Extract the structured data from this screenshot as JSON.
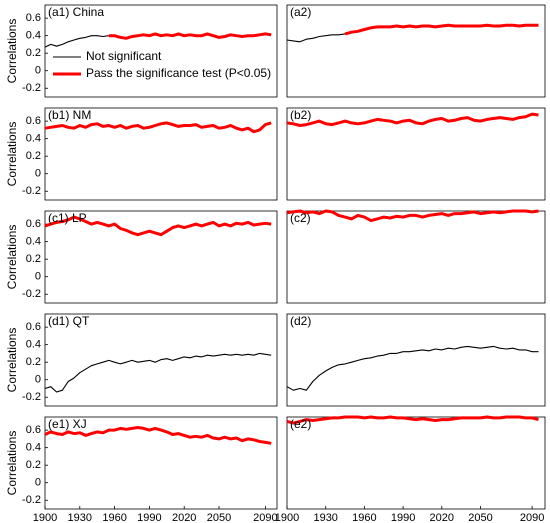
{
  "chart_data": [
    {
      "type": "line",
      "title": "(a1) China",
      "ylabel": "Correlations",
      "legend": "lower left",
      "x": [
        1900,
        1905,
        1910,
        1915,
        1920,
        1925,
        1930,
        1935,
        1940,
        1945,
        1950,
        1955,
        1960,
        1965,
        1970,
        1975,
        1980,
        1985,
        1990,
        1995,
        2000,
        2005,
        2010,
        2015,
        2020,
        2025,
        2030,
        2035,
        2040,
        2045,
        2050,
        2055,
        2060,
        2065,
        2070,
        2075,
        2080,
        2085,
        2090,
        2095
      ],
      "series": [
        {
          "name": "Not significant",
          "color": "#000000",
          "values": [
            0.27,
            0.3,
            0.28,
            0.3,
            0.33,
            0.35,
            0.37,
            0.38,
            0.4,
            0.4,
            0.39,
            0.4,
            null,
            null,
            null,
            null,
            null,
            null,
            null,
            null,
            null,
            null,
            null,
            null,
            null,
            null,
            null,
            null,
            null,
            null,
            null,
            null,
            null,
            null,
            null,
            null,
            null,
            null,
            null,
            null
          ]
        },
        {
          "name": "Pass the significance test (P<0.05)",
          "color": "#ff0000",
          "values": [
            null,
            null,
            null,
            null,
            null,
            null,
            null,
            null,
            null,
            null,
            null,
            0.4,
            0.4,
            0.38,
            0.37,
            0.39,
            0.4,
            0.41,
            0.4,
            0.42,
            0.4,
            0.41,
            0.4,
            0.42,
            0.4,
            0.41,
            0.4,
            0.4,
            0.42,
            0.4,
            0.38,
            0.39,
            0.41,
            0.4,
            0.39,
            0.4,
            0.4,
            0.41,
            0.42,
            0.41
          ]
        }
      ],
      "xlim": [
        1900,
        2100
      ],
      "ylim": [
        -0.3,
        0.75
      ],
      "yticks": [
        -0.2,
        0,
        0.2,
        0.4,
        0.6
      ]
    },
    {
      "type": "line",
      "title": "(a2)",
      "x": [
        1900,
        1905,
        1910,
        1915,
        1920,
        1925,
        1930,
        1935,
        1940,
        1945,
        1950,
        1955,
        1960,
        1965,
        1970,
        1975,
        1980,
        1985,
        1990,
        1995,
        2000,
        2005,
        2010,
        2015,
        2020,
        2025,
        2030,
        2035,
        2040,
        2045,
        2050,
        2055,
        2060,
        2065,
        2070,
        2075,
        2080,
        2085,
        2090,
        2095
      ],
      "series": [
        {
          "color": "#000000",
          "values": [
            0.35,
            0.34,
            0.33,
            0.36,
            0.37,
            0.39,
            0.4,
            0.41,
            0.41,
            0.42,
            null,
            null,
            null,
            null,
            null,
            null,
            null,
            null,
            null,
            null,
            null,
            null,
            null,
            null,
            null,
            null,
            null,
            null,
            null,
            null,
            null,
            null,
            null,
            null,
            null,
            null,
            null,
            null,
            null,
            null
          ]
        },
        {
          "color": "#ff0000",
          "values": [
            null,
            null,
            null,
            null,
            null,
            null,
            null,
            null,
            null,
            0.42,
            0.44,
            0.45,
            0.47,
            0.49,
            0.5,
            0.5,
            0.5,
            0.51,
            0.5,
            0.51,
            0.5,
            0.51,
            0.51,
            0.5,
            0.51,
            0.52,
            0.51,
            0.51,
            0.51,
            0.51,
            0.51,
            0.52,
            0.51,
            0.51,
            0.52,
            0.52,
            0.51,
            0.52,
            0.52,
            0.52
          ]
        }
      ],
      "xlim": [
        1900,
        2100
      ],
      "ylim": [
        -0.3,
        0.75
      ]
    },
    {
      "type": "line",
      "title": "(b1) NM",
      "ylabel": "Correlations",
      "x": [
        1900,
        1905,
        1910,
        1915,
        1920,
        1925,
        1930,
        1935,
        1940,
        1945,
        1950,
        1955,
        1960,
        1965,
        1970,
        1975,
        1980,
        1985,
        1990,
        1995,
        2000,
        2005,
        2010,
        2015,
        2020,
        2025,
        2030,
        2035,
        2040,
        2045,
        2050,
        2055,
        2060,
        2065,
        2070,
        2075,
        2080,
        2085,
        2090,
        2095
      ],
      "series": [
        {
          "color": "#ff0000",
          "values": [
            0.52,
            0.53,
            0.54,
            0.55,
            0.53,
            0.52,
            0.55,
            0.53,
            0.56,
            0.57,
            0.54,
            0.55,
            0.53,
            0.55,
            0.52,
            0.54,
            0.55,
            0.52,
            0.53,
            0.55,
            0.57,
            0.58,
            0.56,
            0.54,
            0.55,
            0.55,
            0.56,
            0.53,
            0.54,
            0.55,
            0.52,
            0.53,
            0.55,
            0.52,
            0.5,
            0.52,
            0.48,
            0.5,
            0.56,
            0.58
          ]
        }
      ],
      "xlim": [
        1900,
        2100
      ],
      "ylim": [
        -0.3,
        0.75
      ],
      "yticks": [
        -0.2,
        0,
        0.2,
        0.4,
        0.6
      ]
    },
    {
      "type": "line",
      "title": "(b2)",
      "x": [
        1900,
        1905,
        1910,
        1915,
        1920,
        1925,
        1930,
        1935,
        1940,
        1945,
        1950,
        1955,
        1960,
        1965,
        1970,
        1975,
        1980,
        1985,
        1990,
        1995,
        2000,
        2005,
        2010,
        2015,
        2020,
        2025,
        2030,
        2035,
        2040,
        2045,
        2050,
        2055,
        2060,
        2065,
        2070,
        2075,
        2080,
        2085,
        2090,
        2095
      ],
      "series": [
        {
          "color": "#ff0000",
          "values": [
            0.58,
            0.57,
            0.55,
            0.56,
            0.58,
            0.6,
            0.57,
            0.56,
            0.58,
            0.6,
            0.58,
            0.57,
            0.58,
            0.6,
            0.62,
            0.61,
            0.6,
            0.58,
            0.6,
            0.61,
            0.58,
            0.57,
            0.6,
            0.62,
            0.63,
            0.6,
            0.61,
            0.63,
            0.64,
            0.61,
            0.6,
            0.62,
            0.63,
            0.64,
            0.63,
            0.62,
            0.64,
            0.65,
            0.68,
            0.67
          ]
        }
      ],
      "xlim": [
        1900,
        2100
      ],
      "ylim": [
        -0.3,
        0.75
      ]
    },
    {
      "type": "line",
      "title": "(c1) LP",
      "ylabel": "Correlations",
      "x": [
        1900,
        1905,
        1910,
        1915,
        1920,
        1925,
        1930,
        1935,
        1940,
        1945,
        1950,
        1955,
        1960,
        1965,
        1970,
        1975,
        1980,
        1985,
        1990,
        1995,
        2000,
        2005,
        2010,
        2015,
        2020,
        2025,
        2030,
        2035,
        2040,
        2045,
        2050,
        2055,
        2060,
        2065,
        2070,
        2075,
        2080,
        2085,
        2090,
        2095
      ],
      "series": [
        {
          "color": "#ff0000",
          "values": [
            0.58,
            0.6,
            0.62,
            0.63,
            0.65,
            0.68,
            0.66,
            0.63,
            0.6,
            0.62,
            0.6,
            0.58,
            0.6,
            0.55,
            0.53,
            0.5,
            0.48,
            0.5,
            0.52,
            0.5,
            0.48,
            0.52,
            0.56,
            0.58,
            0.56,
            0.58,
            0.6,
            0.58,
            0.6,
            0.62,
            0.58,
            0.6,
            0.58,
            0.61,
            0.6,
            0.62,
            0.59,
            0.6,
            0.61,
            0.6
          ]
        }
      ],
      "xlim": [
        1900,
        2100
      ],
      "ylim": [
        -0.3,
        0.75
      ],
      "yticks": [
        -0.2,
        0,
        0.2,
        0.4,
        0.6
      ]
    },
    {
      "type": "line",
      "title": "(c2)",
      "x": [
        1900,
        1905,
        1910,
        1915,
        1920,
        1925,
        1930,
        1935,
        1940,
        1945,
        1950,
        1955,
        1960,
        1965,
        1970,
        1975,
        1980,
        1985,
        1990,
        1995,
        2000,
        2005,
        2010,
        2015,
        2020,
        2025,
        2030,
        2035,
        2040,
        2045,
        2050,
        2055,
        2060,
        2065,
        2070,
        2075,
        2080,
        2085,
        2090,
        2095
      ],
      "series": [
        {
          "color": "#ff0000",
          "values": [
            0.73,
            0.74,
            0.75,
            0.73,
            0.74,
            0.72,
            0.75,
            0.74,
            0.7,
            0.68,
            0.66,
            0.7,
            0.68,
            0.64,
            0.66,
            0.68,
            0.67,
            0.69,
            0.68,
            0.7,
            0.7,
            0.68,
            0.7,
            0.71,
            0.72,
            0.7,
            0.72,
            0.72,
            0.73,
            0.74,
            0.72,
            0.73,
            0.74,
            0.73,
            0.74,
            0.75,
            0.75,
            0.75,
            0.74,
            0.75
          ]
        }
      ],
      "xlim": [
        1900,
        2100
      ],
      "ylim": [
        -0.3,
        0.75
      ]
    },
    {
      "type": "line",
      "title": "(d1) QT",
      "ylabel": "Correlations",
      "x": [
        1900,
        1905,
        1910,
        1915,
        1920,
        1925,
        1930,
        1935,
        1940,
        1945,
        1950,
        1955,
        1960,
        1965,
        1970,
        1975,
        1980,
        1985,
        1990,
        1995,
        2000,
        2005,
        2010,
        2015,
        2020,
        2025,
        2030,
        2035,
        2040,
        2045,
        2050,
        2055,
        2060,
        2065,
        2070,
        2075,
        2080,
        2085,
        2090,
        2095
      ],
      "series": [
        {
          "color": "#000000",
          "values": [
            -0.1,
            -0.08,
            -0.14,
            -0.12,
            -0.02,
            0.02,
            0.08,
            0.12,
            0.16,
            0.18,
            0.2,
            0.22,
            0.2,
            0.18,
            0.2,
            0.22,
            0.2,
            0.21,
            0.22,
            0.2,
            0.23,
            0.24,
            0.22,
            0.24,
            0.26,
            0.25,
            0.27,
            0.26,
            0.28,
            0.27,
            0.28,
            0.29,
            0.28,
            0.29,
            0.28,
            0.29,
            0.28,
            0.3,
            0.29,
            0.28
          ]
        }
      ],
      "xlim": [
        1900,
        2100
      ],
      "ylim": [
        -0.3,
        0.75
      ],
      "yticks": [
        -0.2,
        0,
        0.2,
        0.4,
        0.6
      ]
    },
    {
      "type": "line",
      "title": "(d2)",
      "x": [
        1900,
        1905,
        1910,
        1915,
        1920,
        1925,
        1930,
        1935,
        1940,
        1945,
        1950,
        1955,
        1960,
        1965,
        1970,
        1975,
        1980,
        1985,
        1990,
        1995,
        2000,
        2005,
        2010,
        2015,
        2020,
        2025,
        2030,
        2035,
        2040,
        2045,
        2050,
        2055,
        2060,
        2065,
        2070,
        2075,
        2080,
        2085,
        2090,
        2095
      ],
      "series": [
        {
          "color": "#000000",
          "values": [
            -0.08,
            -0.12,
            -0.1,
            -0.12,
            -0.02,
            0.05,
            0.1,
            0.14,
            0.17,
            0.18,
            0.2,
            0.22,
            0.24,
            0.25,
            0.27,
            0.28,
            0.3,
            0.3,
            0.32,
            0.32,
            0.33,
            0.34,
            0.33,
            0.35,
            0.34,
            0.36,
            0.35,
            0.37,
            0.38,
            0.37,
            0.36,
            0.37,
            0.38,
            0.36,
            0.35,
            0.36,
            0.34,
            0.34,
            0.32,
            0.32
          ]
        }
      ],
      "xlim": [
        1900,
        2100
      ],
      "ylim": [
        -0.3,
        0.75
      ]
    },
    {
      "type": "line",
      "title": "(e1) XJ",
      "ylabel": "Correlations",
      "x": [
        1900,
        1905,
        1910,
        1915,
        1920,
        1925,
        1930,
        1935,
        1940,
        1945,
        1950,
        1955,
        1960,
        1965,
        1970,
        1975,
        1980,
        1985,
        1990,
        1995,
        2000,
        2005,
        2010,
        2015,
        2020,
        2025,
        2030,
        2035,
        2040,
        2045,
        2050,
        2055,
        2060,
        2065,
        2070,
        2075,
        2080,
        2085,
        2090,
        2095
      ],
      "series": [
        {
          "color": "#ff0000",
          "values": [
            0.55,
            0.58,
            0.56,
            0.55,
            0.58,
            0.56,
            0.57,
            0.54,
            0.56,
            0.58,
            0.57,
            0.6,
            0.6,
            0.62,
            0.61,
            0.62,
            0.63,
            0.62,
            0.6,
            0.62,
            0.6,
            0.58,
            0.55,
            0.56,
            0.54,
            0.52,
            0.53,
            0.52,
            0.54,
            0.51,
            0.5,
            0.52,
            0.5,
            0.51,
            0.48,
            0.5,
            0.49,
            0.47,
            0.46,
            0.45
          ]
        }
      ],
      "xlim": [
        1900,
        2100
      ],
      "ylim": [
        -0.3,
        0.75
      ],
      "yticks": [
        -0.2,
        0,
        0.2,
        0.4,
        0.6
      ],
      "xticks": [
        1900,
        1930,
        1960,
        1990,
        2020,
        2050,
        2090
      ]
    },
    {
      "type": "line",
      "title": "(e2)",
      "x": [
        1900,
        1905,
        1910,
        1915,
        1920,
        1925,
        1930,
        1935,
        1940,
        1945,
        1950,
        1955,
        1960,
        1965,
        1970,
        1975,
        1980,
        1985,
        1990,
        1995,
        2000,
        2005,
        2010,
        2015,
        2020,
        2025,
        2030,
        2035,
        2040,
        2045,
        2050,
        2055,
        2060,
        2065,
        2070,
        2075,
        2080,
        2085,
        2090,
        2095
      ],
      "series": [
        {
          "color": "#ff0000",
          "values": [
            0.7,
            0.68,
            0.7,
            0.72,
            0.71,
            0.72,
            0.73,
            0.74,
            0.74,
            0.75,
            0.75,
            0.75,
            0.74,
            0.75,
            0.74,
            0.74,
            0.75,
            0.74,
            0.74,
            0.73,
            0.72,
            0.73,
            0.72,
            0.71,
            0.72,
            0.72,
            0.73,
            0.74,
            0.74,
            0.74,
            0.74,
            0.75,
            0.74,
            0.74,
            0.75,
            0.75,
            0.75,
            0.74,
            0.74,
            0.72
          ]
        }
      ],
      "xlim": [
        1900,
        2100
      ],
      "ylim": [
        -0.3,
        0.75
      ],
      "xticks": [
        1900,
        1930,
        1960,
        1990,
        2020,
        2050,
        2090
      ]
    }
  ]
}
